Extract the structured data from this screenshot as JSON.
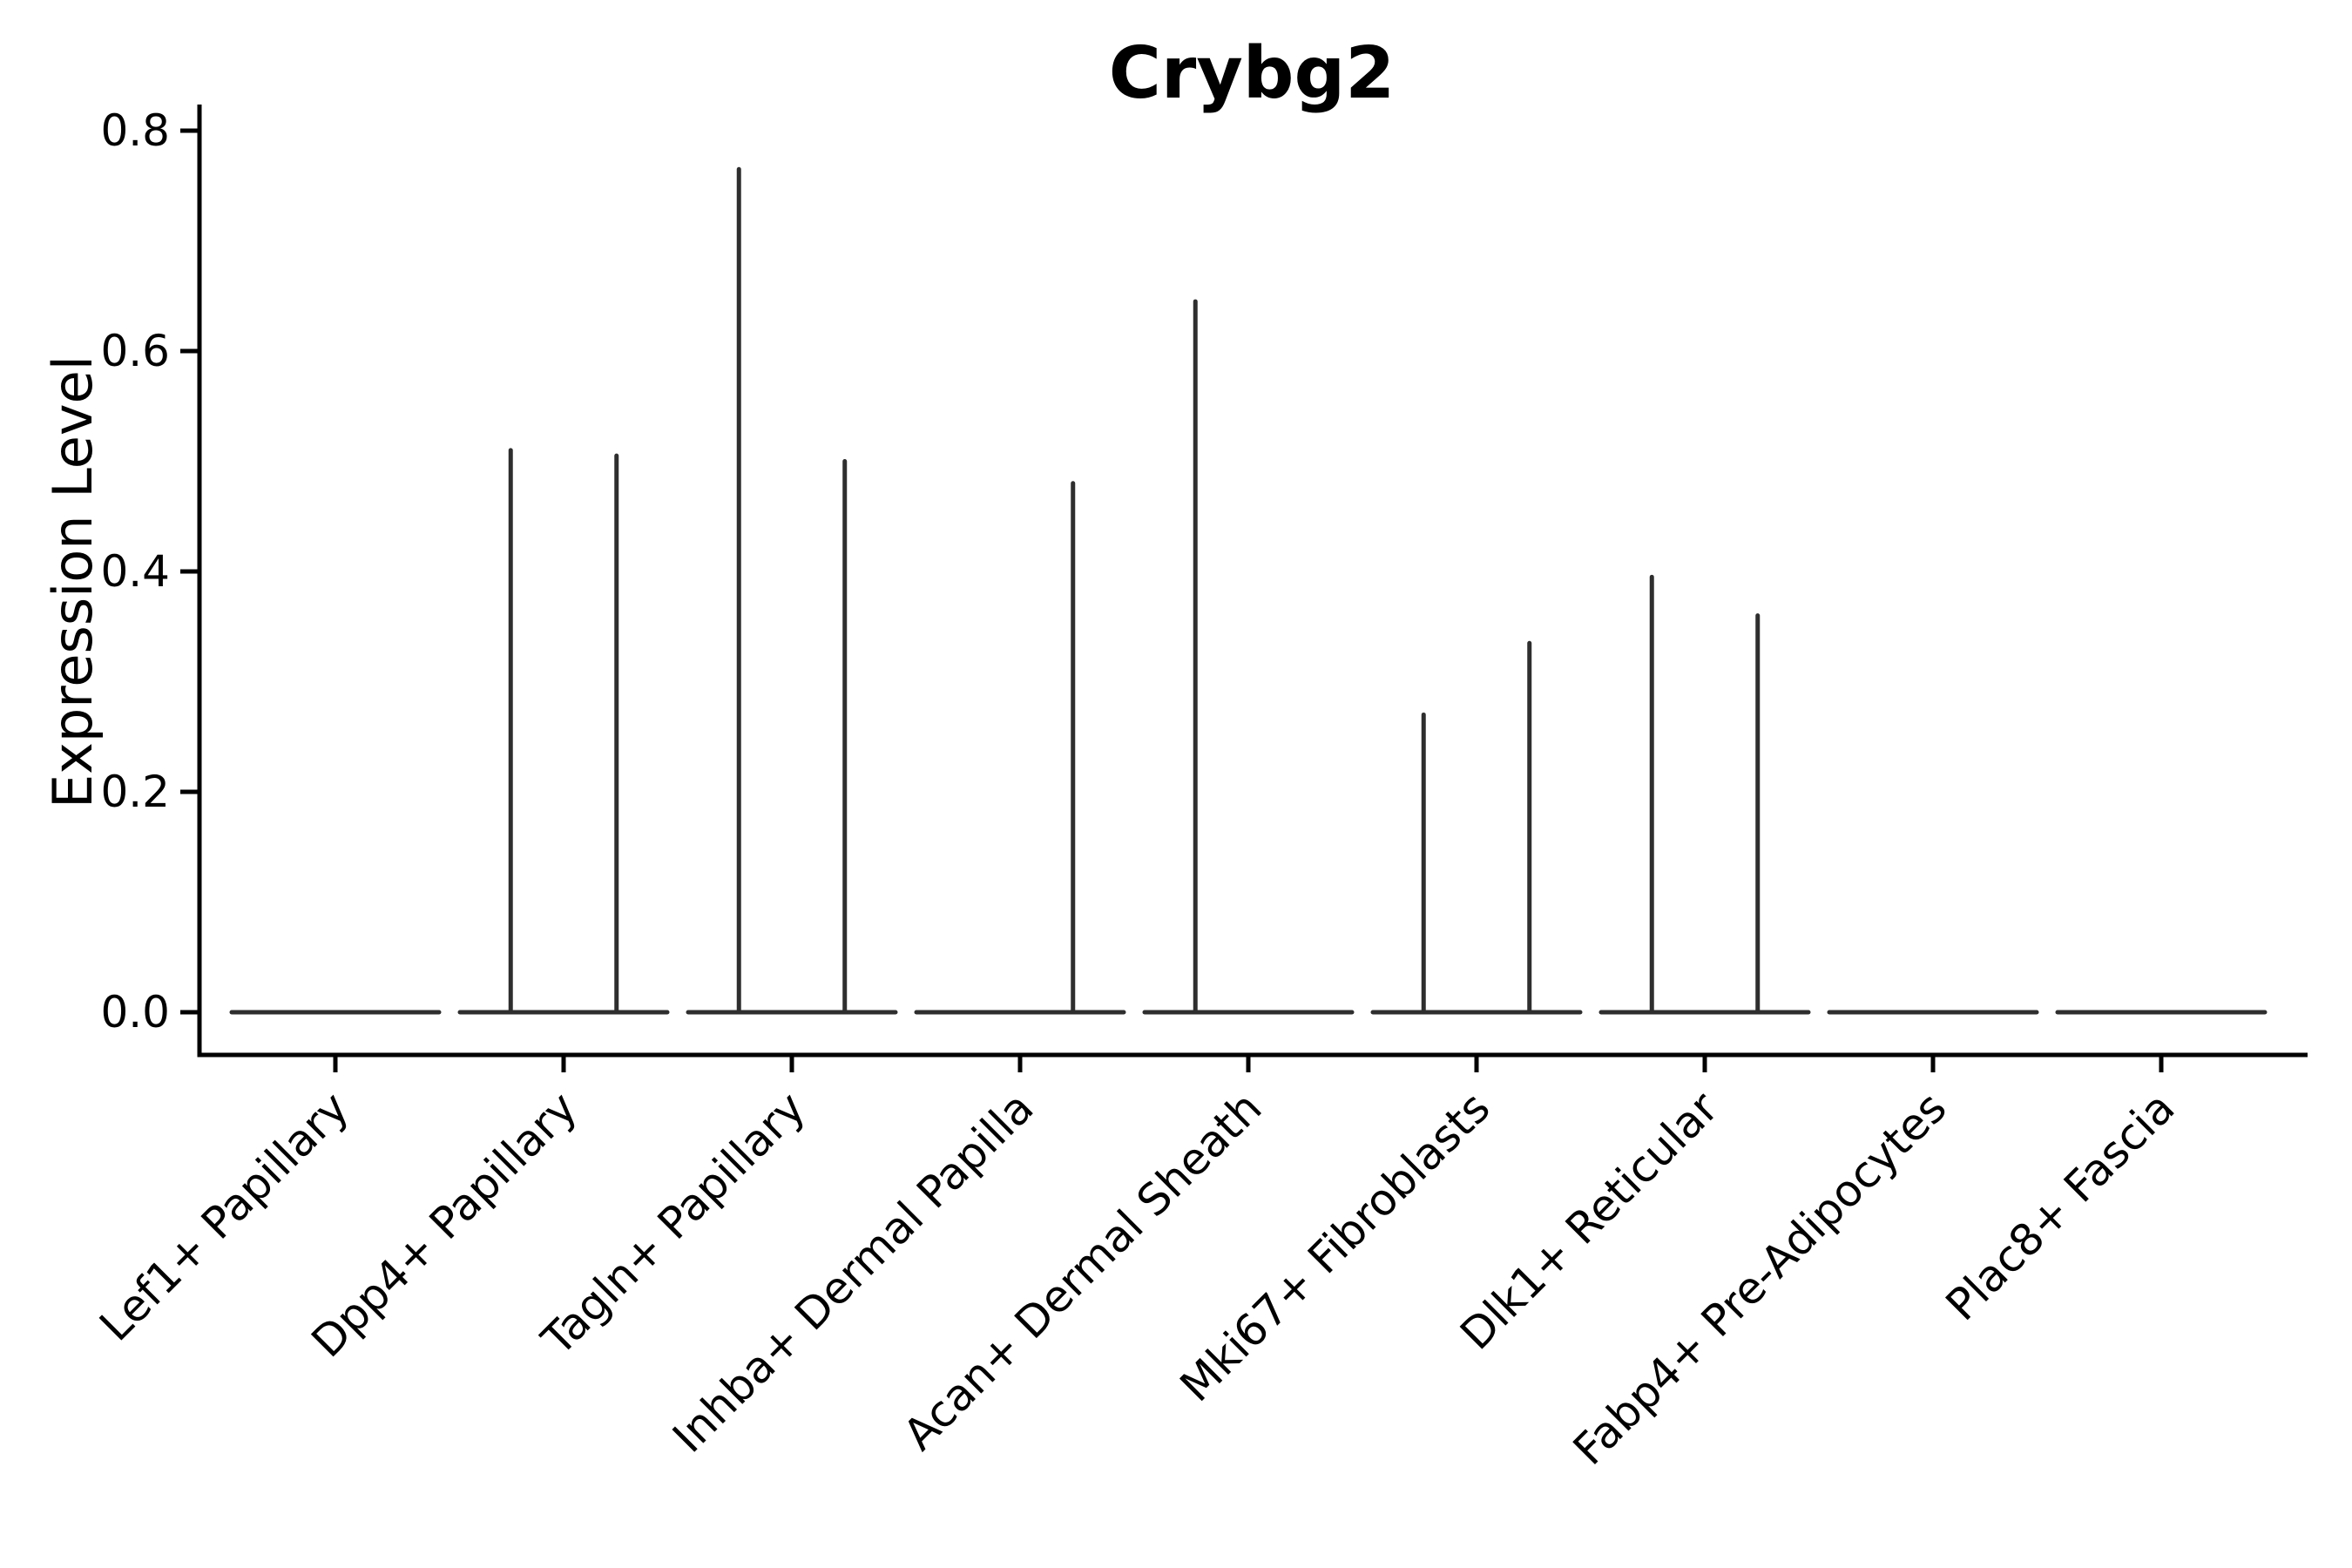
{
  "title": "Crybg2",
  "y_axis": {
    "label": "Expression Level",
    "tick_labels": [
      "0.0",
      "0.2",
      "0.4",
      "0.6",
      "0.8"
    ],
    "tick_values": [
      0.0,
      0.2,
      0.4,
      0.6,
      0.8
    ]
  },
  "chart_data": {
    "type": "violin",
    "title": "Crybg2",
    "xlabel": "",
    "ylabel": "Expression Level",
    "ylim": [
      0,
      0.82
    ],
    "grid": false,
    "legend": "none",
    "violins_per_category": 2,
    "categories": [
      "Lef1+ Papillary",
      "Dpp4+ Papillary",
      "Tagln+ Papillary",
      "Inhba+ Dermal Papilla",
      "Acan+ Dermal Sheath",
      "Mki67+ Fibroblasts",
      "Dlk1+ Reticular",
      "Fabp4+ Pre-Adipocytes",
      "Plac8+ Fascia"
    ],
    "series": [
      {
        "category": "Lef1+ Papillary",
        "max_expression": [
          0,
          0
        ]
      },
      {
        "category": "Dpp4+ Papillary",
        "max_expression": [
          0.51,
          0.505
        ]
      },
      {
        "category": "Tagln+ Papillary",
        "max_expression": [
          0.765,
          0.5
        ]
      },
      {
        "category": "Inhba+ Dermal Papilla",
        "max_expression": [
          0,
          0.48
        ]
      },
      {
        "category": "Acan+ Dermal Sheath",
        "max_expression": [
          0.645,
          0
        ]
      },
      {
        "category": "Mki67+ Fibroblasts",
        "max_expression": [
          0.27,
          0.335
        ]
      },
      {
        "category": "Dlk1+ Reticular",
        "max_expression": [
          0.395,
          0.36
        ]
      },
      {
        "category": "Fabp4+ Pre-Adipocytes",
        "max_expression": [
          0,
          0
        ]
      },
      {
        "category": "Plac8+ Fascia",
        "max_expression": [
          0,
          0
        ]
      }
    ],
    "baseline_value": 0.0
  },
  "colors": {
    "violin_line": "#2e2e2e",
    "axis_line": "#000000",
    "text": "#000000",
    "background": "#ffffff"
  }
}
